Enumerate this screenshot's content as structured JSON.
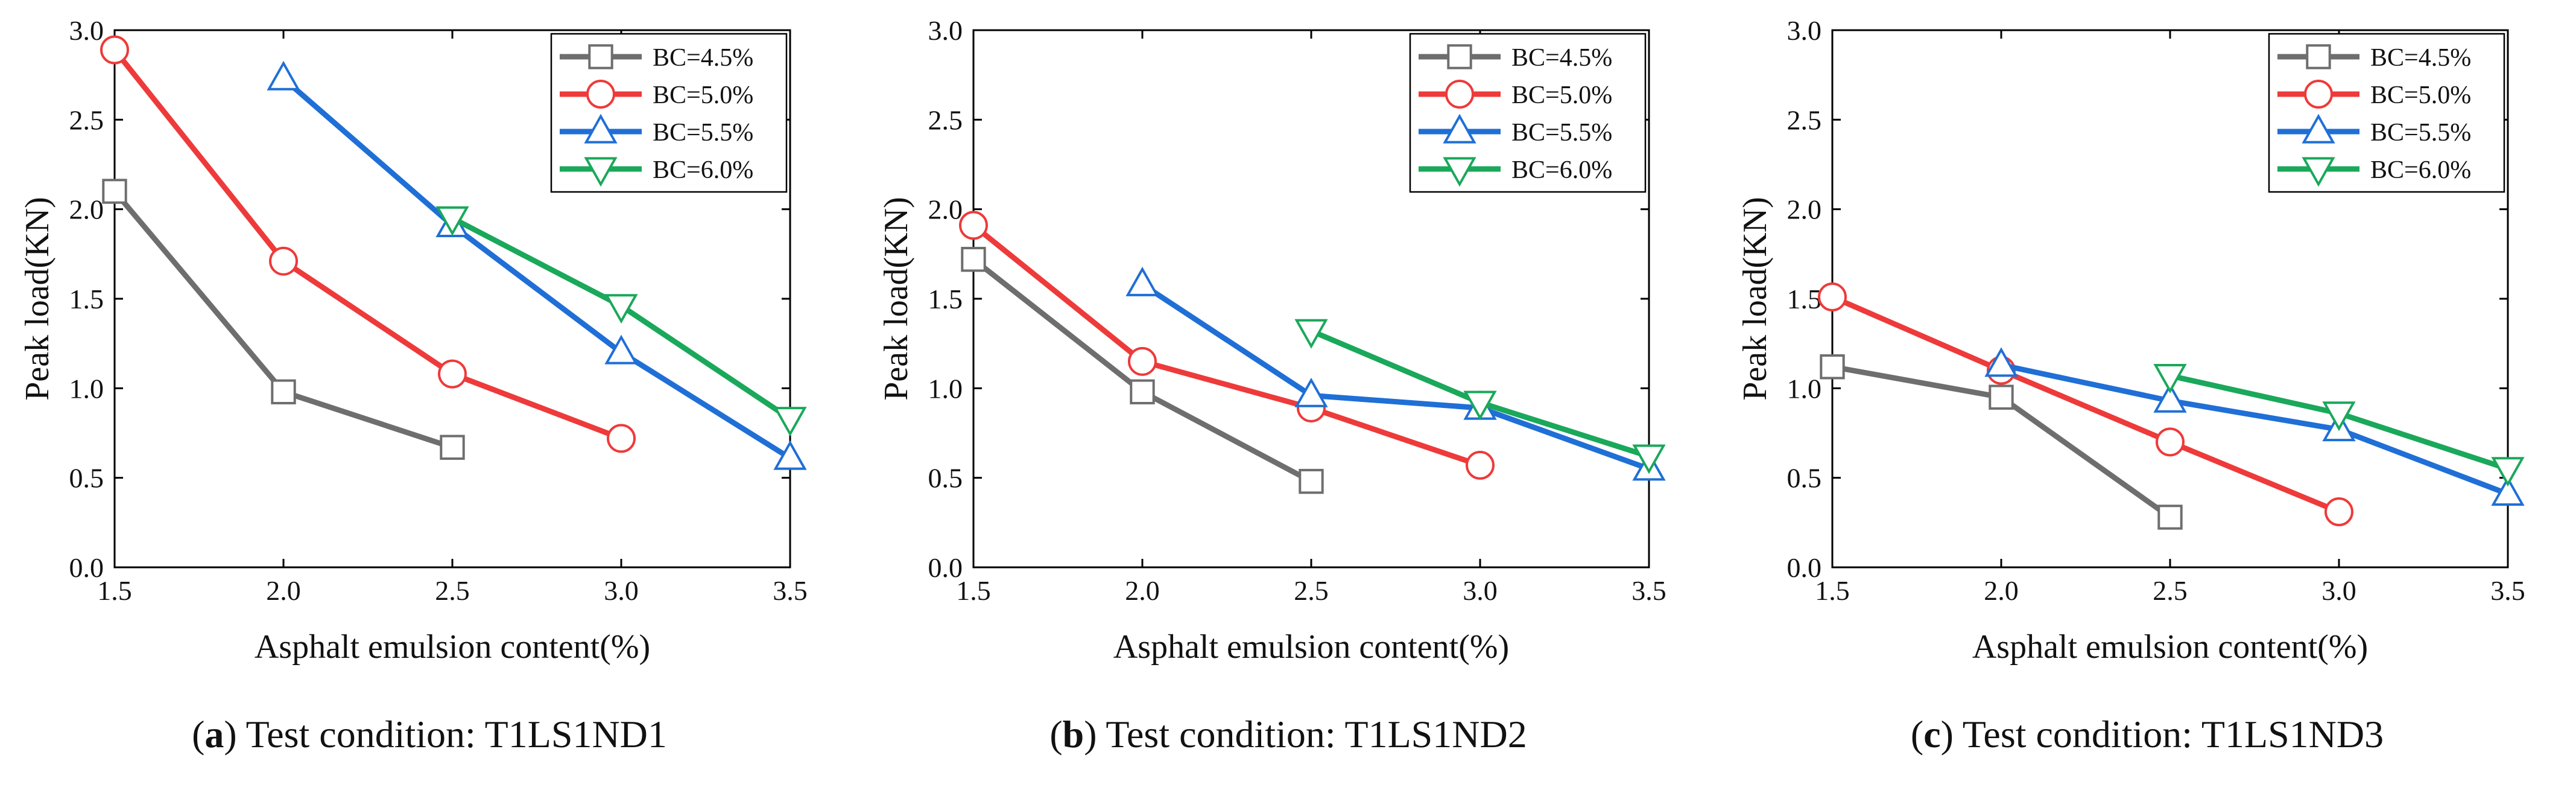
{
  "chart_data": [
    {
      "type": "line",
      "caption": {
        "tag": "a",
        "text": "Test condition: T1LS1ND1"
      },
      "xlabel": "Asphalt emulsion content(%)",
      "ylabel": "Peak load(KN)",
      "xlim": [
        1.5,
        3.5
      ],
      "ylim": [
        0.0,
        3.0
      ],
      "xticks": [
        "1.5",
        "2.0",
        "2.5",
        "3.0",
        "3.5"
      ],
      "yticks": [
        "0.0",
        "0.5",
        "1.0",
        "1.5",
        "2.0",
        "2.5",
        "3.0"
      ],
      "legend_position": "top-right",
      "series": [
        {
          "name": "BC=4.5%",
          "color": "#6e6e6e",
          "marker": "square",
          "x": [
            1.5,
            2.0,
            2.5
          ],
          "values": [
            2.1,
            0.98,
            0.67
          ]
        },
        {
          "name": "BC=5.0%",
          "color": "#ee3a3a",
          "marker": "circle",
          "x": [
            1.5,
            2.0,
            2.5,
            3.0
          ],
          "values": [
            2.89,
            1.71,
            1.08,
            0.72
          ]
        },
        {
          "name": "BC=5.5%",
          "color": "#1f6fd6",
          "marker": "triangle-up",
          "x": [
            2.0,
            2.5,
            3.0,
            3.5
          ],
          "values": [
            2.73,
            1.91,
            1.2,
            0.61
          ]
        },
        {
          "name": "BC=6.0%",
          "color": "#1aa85a",
          "marker": "triangle-down",
          "x": [
            2.5,
            3.0,
            3.5
          ],
          "values": [
            1.95,
            1.46,
            0.83
          ]
        }
      ]
    },
    {
      "type": "line",
      "caption": {
        "tag": "b",
        "text": "Test condition: T1LS1ND2"
      },
      "xlabel": "Asphalt emulsion content(%)",
      "ylabel": "Peak load(KN)",
      "xlim": [
        1.5,
        3.5
      ],
      "ylim": [
        0.0,
        3.0
      ],
      "xticks": [
        "1.5",
        "2.0",
        "2.5",
        "3.0",
        "3.5"
      ],
      "yticks": [
        "0.0",
        "0.5",
        "1.0",
        "1.5",
        "2.0",
        "2.5",
        "3.0"
      ],
      "legend_position": "top-right",
      "series": [
        {
          "name": "BC=4.5%",
          "color": "#6e6e6e",
          "marker": "square",
          "x": [
            1.5,
            2.0,
            2.5
          ],
          "values": [
            1.72,
            0.98,
            0.48
          ]
        },
        {
          "name": "BC=5.0%",
          "color": "#ee3a3a",
          "marker": "circle",
          "x": [
            1.5,
            2.0,
            2.5,
            3.0
          ],
          "values": [
            1.91,
            1.15,
            0.89,
            0.57
          ]
        },
        {
          "name": "BC=5.5%",
          "color": "#1f6fd6",
          "marker": "triangle-up",
          "x": [
            2.0,
            2.5,
            3.0,
            3.5
          ],
          "values": [
            1.58,
            0.96,
            0.89,
            0.55
          ]
        },
        {
          "name": "BC=6.0%",
          "color": "#1aa85a",
          "marker": "triangle-down",
          "x": [
            2.5,
            3.0,
            3.5
          ],
          "values": [
            1.32,
            0.92,
            0.62
          ]
        }
      ]
    },
    {
      "type": "line",
      "caption": {
        "tag": "c",
        "text": "Test condition: T1LS1ND3"
      },
      "xlabel": "Asphalt emulsion content(%)",
      "ylabel": "Peak load(KN)",
      "xlim": [
        1.5,
        3.5
      ],
      "ylim": [
        0.0,
        3.0
      ],
      "xticks": [
        "1.5",
        "2.0",
        "2.5",
        "3.0",
        "3.5"
      ],
      "yticks": [
        "0.0",
        "0.5",
        "1.0",
        "1.5",
        "2.0",
        "2.5",
        "3.0"
      ],
      "legend_position": "top-right",
      "series": [
        {
          "name": "BC=4.5%",
          "color": "#6e6e6e",
          "marker": "square",
          "x": [
            1.5,
            2.0,
            2.5
          ],
          "values": [
            1.12,
            0.95,
            0.28
          ]
        },
        {
          "name": "BC=5.0%",
          "color": "#ee3a3a",
          "marker": "circle",
          "x": [
            1.5,
            2.0,
            2.5,
            3.0
          ],
          "values": [
            1.51,
            1.1,
            0.7,
            0.31
          ]
        },
        {
          "name": "BC=5.5%",
          "color": "#1f6fd6",
          "marker": "triangle-up",
          "x": [
            2.0,
            2.5,
            3.0,
            3.5
          ],
          "values": [
            1.13,
            0.93,
            0.77,
            0.41
          ]
        },
        {
          "name": "BC=6.0%",
          "color": "#1aa85a",
          "marker": "triangle-down",
          "x": [
            2.5,
            3.0,
            3.5
          ],
          "values": [
            1.07,
            0.86,
            0.55
          ]
        }
      ]
    }
  ]
}
